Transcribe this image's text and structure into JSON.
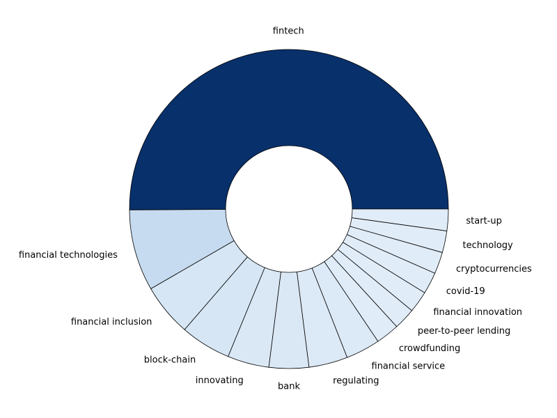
{
  "chart_data": {
    "type": "pie",
    "donut": true,
    "title": "",
    "start_angle_deg": 0,
    "direction": "counterclockwise",
    "categories": [
      "fintech",
      "financial technologies",
      "financial inclusion",
      "block-chain",
      "innovating",
      "bank",
      "regulating",
      "financial service",
      "crowdfunding",
      "peer-to-peer lending",
      "financial innovation",
      "covid-19",
      "cryptocurrencies",
      "technology",
      "start-up"
    ],
    "values": [
      54.7,
      9.0,
      5.8,
      5.6,
      4.6,
      4.4,
      4.3,
      3.8,
      2.6,
      2.4,
      2.4,
      2.4,
      2.4,
      2.4,
      2.4
    ],
    "colors": [
      "#08306b",
      "#c6dbef",
      "#d6e6f4",
      "#d6e6f4",
      "#dae8f6",
      "#dae8f6",
      "#dce9f6",
      "#dce9f6",
      "#e0ecf8",
      "#e0ecf8",
      "#e0ecf8",
      "#e0ecf8",
      "#e0ecf8",
      "#e0ecf8",
      "#e0ecf8"
    ]
  }
}
